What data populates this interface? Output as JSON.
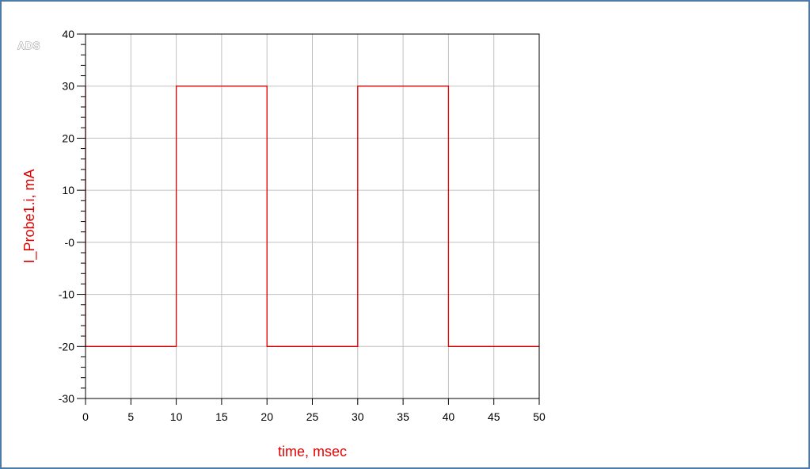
{
  "logo": "ADS",
  "colors": {
    "frame_border": "#4f79a6",
    "trace": "#e00000",
    "axis_title": "#e00000",
    "grid": "#c0c0c0",
    "axis": "#000000"
  },
  "chart_data": {
    "type": "line",
    "xlabel": "time, msec",
    "ylabel": "I_Probe1.i, mA",
    "xlim": [
      0,
      50
    ],
    "ylim": [
      -30,
      40
    ],
    "x_ticks": [
      0,
      5,
      10,
      15,
      20,
      25,
      30,
      35,
      40,
      45,
      50
    ],
    "y_ticks": [
      40,
      30,
      20,
      10,
      0,
      -10,
      -20,
      -30
    ],
    "y_tick_labels": [
      "40",
      "30",
      "20",
      "10",
      "-0",
      "-10",
      "-20",
      "-30"
    ],
    "y_minor_ticks_per_major": 5,
    "grid": true,
    "series": [
      {
        "color": "#e00000",
        "x": [
          0,
          0,
          10,
          10,
          20,
          20,
          30,
          30,
          40,
          40,
          50
        ],
        "y": [
          30,
          -20,
          -20,
          30,
          30,
          -20,
          -20,
          30,
          30,
          -20,
          -20
        ]
      }
    ]
  }
}
